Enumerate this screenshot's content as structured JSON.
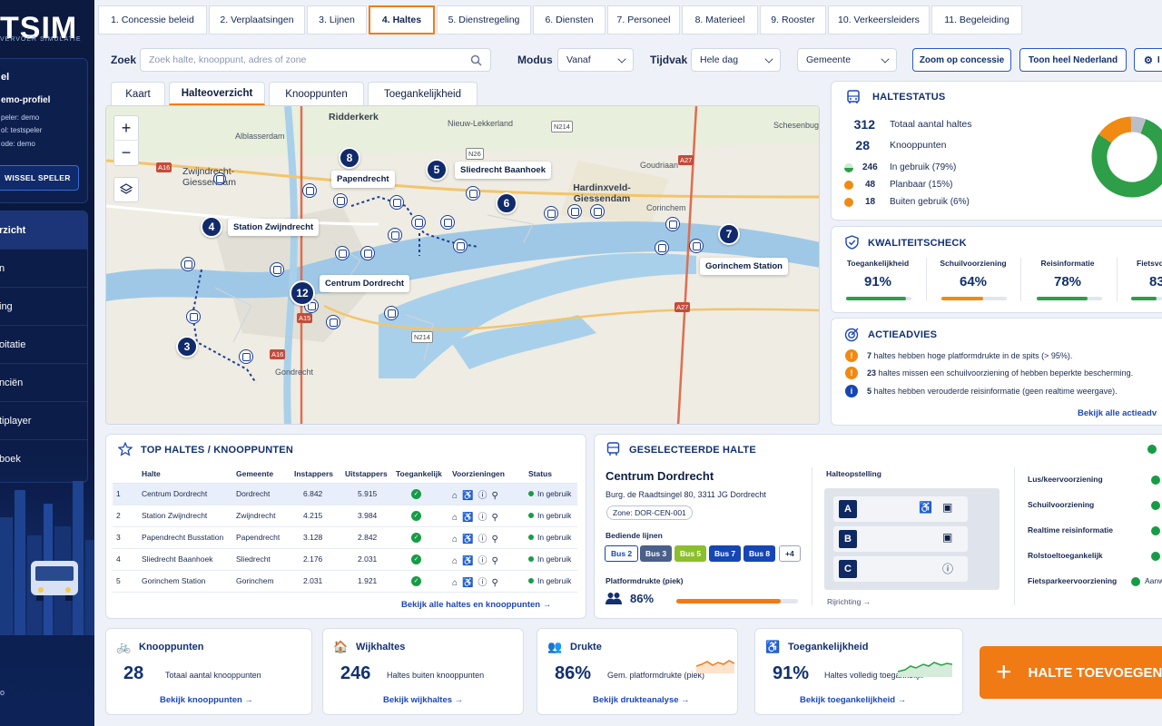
{
  "app": {
    "logo": "TSIM",
    "logo_sub": "VERVOER SIMULATIE"
  },
  "sidebar": {
    "profile_title": "el",
    "profile_name": "emo-profiel",
    "profile_lines": [
      "peler: demo",
      "ol: testspeler",
      "ode: demo"
    ],
    "switch_label": "WISSEL SPELER",
    "items": [
      {
        "label": "rzicht",
        "active": true
      },
      {
        "label": "n"
      },
      {
        "label": "ing"
      },
      {
        "label": "oitatie"
      },
      {
        "label": "nciën"
      },
      {
        "label": "tiplayer"
      },
      {
        "label": "boek"
      }
    ],
    "bottom": "o"
  },
  "tabs": [
    "1. Concessie beleid",
    "2. Verplaatsingen",
    "3. Lijnen",
    "4. Haltes",
    "5. Dienstregeling",
    "6. Diensten",
    "7. Personeel",
    "8. Materieel",
    "9. Rooster",
    "10. Verkeersleiders",
    "11. Begeleiding"
  ],
  "filters": {
    "search_label": "Zoek",
    "search_placeholder": "Zoek halte, knooppunt, adres of zone",
    "mode_label": "Modus",
    "mode_value": "Vanaf",
    "time_label": "Tijdvak",
    "time_value": "Hele dag",
    "muni_value": "Gemeente",
    "zoom_btn": "Zoom op concessie",
    "nl_btn": "Toon heel Nederland",
    "settings_btn": "I"
  },
  "subtabs": [
    "Kaart",
    "Halteoverzicht",
    "Knooppunten",
    "Toegankelijkheid"
  ],
  "map": {
    "places": [
      "Ridderkerk",
      "Alblasserdam",
      "Nieuw-Lekkerland",
      "Schesenbug",
      "Zwijndrecht-Giessendam",
      "Goudriaan",
      "Hardinxveld-Giessendam",
      "Corinchem",
      "Gondrecht"
    ],
    "roads": [
      "A16",
      "N214",
      "N26",
      "A27",
      "A15",
      "A16",
      "N214",
      "A27"
    ],
    "pins": [
      {
        "num": "8",
        "label": "Papendrecht"
      },
      {
        "num": "5",
        "label": "Sliedrecht Baanhoek"
      },
      {
        "num": "6",
        "label": ""
      },
      {
        "num": "4",
        "label": "Station Zwijndrecht"
      },
      {
        "num": "12",
        "label": "Centrum Dordrecht"
      },
      {
        "num": "3",
        "label": ""
      },
      {
        "num": "7",
        "label": "Gorinchem Station"
      }
    ],
    "zoom_in": "+",
    "zoom_out": "−"
  },
  "halte_status": {
    "title": "HALTESTATUS",
    "total": "312",
    "total_label": "Totaal aantal haltes",
    "nodes": "28",
    "nodes_label": "Knooppunten",
    "rows": [
      {
        "num": "246",
        "label": "In gebruik (79%)",
        "color": "#2e9e48"
      },
      {
        "num": "48",
        "label": "Planbaar (15%)",
        "color": "#f08a12"
      },
      {
        "num": "18",
        "label": "Buiten gebruik (6%)",
        "color": "#f08a12"
      }
    ],
    "donut": [
      {
        "label": "In gebruik",
        "pct": 79,
        "color": "#2e9e48"
      },
      {
        "label": "Planbaar",
        "pct": 15,
        "color": "#f08a12"
      },
      {
        "label": "Buiten gebruik",
        "pct": 6,
        "color": "#b9bec8"
      }
    ]
  },
  "quality": {
    "title": "KWALITEITSCHECK",
    "items": [
      {
        "label": "Toegankelijkheid",
        "value": "91%",
        "pct": 91,
        "color": "#2e9e48"
      },
      {
        "label": "Schuilvoorziening",
        "value": "64%",
        "pct": 64,
        "color": "#f08a12"
      },
      {
        "label": "Reisinformatie",
        "value": "78%",
        "pct": 78,
        "color": "#2e9e48"
      },
      {
        "label": "Fietsvoo",
        "value": "83",
        "pct": 83,
        "color": "#2e9e48"
      }
    ]
  },
  "advice": {
    "title": "ACTIEADVIES",
    "items": [
      {
        "num": "7",
        "text": " haltes hebben hoge platformdrukte in de spits (> 95%).",
        "type": "warn"
      },
      {
        "num": "23",
        "text": " haltes missen een schuilvoorziening of hebben beperkte bescherming.",
        "type": "warn"
      },
      {
        "num": "5",
        "text": " haltes hebben verouderde reisinformatie (geen realtime weergave).",
        "type": "info"
      }
    ],
    "link": "Bekijk alle actieadv"
  },
  "top_stops": {
    "title": "TOP HALTES / KNOOPPUNTEN",
    "headers": [
      "",
      "Halte",
      "Gemeente",
      "Instappers",
      "Uitstappers",
      "Toegankelijk",
      "Voorzieningen",
      "Status"
    ],
    "rows": [
      {
        "rank": "1",
        "name": "Centrum Dordrecht",
        "city": "Dordrecht",
        "in": "6.842",
        "out": "5.915",
        "status": "In gebruik"
      },
      {
        "rank": "2",
        "name": "Station Zwijndrecht",
        "city": "Zwijndrecht",
        "in": "4.215",
        "out": "3.984",
        "status": "In gebruik"
      },
      {
        "rank": "3",
        "name": "Papendrecht Busstation",
        "city": "Papendrecht",
        "in": "3.128",
        "out": "2.842",
        "status": "In gebruik"
      },
      {
        "rank": "4",
        "name": "Sliedrecht Baanhoek",
        "city": "Sliedrecht",
        "in": "2.176",
        "out": "2.031",
        "status": "In gebruik"
      },
      {
        "rank": "5",
        "name": "Gorinchem Station",
        "city": "Gorinchem",
        "in": "2.031",
        "out": "1.921",
        "status": "In gebruik"
      }
    ],
    "link": "Bekijk alle haltes en knooppunten →"
  },
  "selected": {
    "title": "GESELECTEERDE HALTE",
    "name": "Centrum Dordrecht",
    "address": "Burg. de Raadtsingel 80, 3311 JG Dordrecht",
    "zone": "Zone: DOR-CEN-001",
    "lines_label": "Bediende lijnen",
    "lines": [
      {
        "label": "Bus 2",
        "style": "outline"
      },
      {
        "label": "Bus 3",
        "color": "#4a5f8a"
      },
      {
        "label": "Bus 5",
        "color": "#8cbf2d"
      },
      {
        "label": "Bus 7",
        "color": "#1646b4"
      },
      {
        "label": "Bus 8",
        "color": "#1646b4"
      },
      {
        "label": "+4",
        "style": "outline"
      }
    ],
    "crowd_label": "Platformdrukte (piek)",
    "crowd_value": "86%",
    "crowd_pct": 86,
    "layout_label": "Halteopstelling",
    "slots": [
      "A",
      "B",
      "C"
    ],
    "direction": "Rijrichting →",
    "facilities": [
      {
        "label": "Lus/keervoorziening",
        "value": ""
      },
      {
        "label": "Schuilvoorziening",
        "value": ""
      },
      {
        "label": "Realtime reisinformatie",
        "value": ""
      },
      {
        "label": "Rolstoeltoegankelijk",
        "value": ""
      },
      {
        "label": "Fietsparkeervoorziening",
        "value": "Aanw"
      }
    ]
  },
  "kpis": [
    {
      "title": "Knooppunten",
      "num": "28",
      "desc": "Totaal aantal knooppunten",
      "link": "Bekijk knooppunten →"
    },
    {
      "title": "Wijkhaltes",
      "num": "246",
      "desc": "Haltes buiten knooppunten",
      "link": "Bekijk wijkhaltes →"
    },
    {
      "title": "Drukte",
      "num": "86%",
      "desc": "Gem. platformdrukte (piek)",
      "link": "Bekijk drukteanalyse →"
    },
    {
      "title": "Toegankelijkheid",
      "num": "91%",
      "desc": "Haltes volledig toegankelijk",
      "link": "Bekijk toegankelijkheid →"
    }
  ],
  "add_button": "HALTE TOEVOEGEN",
  "colors": {
    "accent": "#f07a14",
    "navy": "#102a6b",
    "green": "#2e9e48",
    "orange": "#f08a12"
  }
}
